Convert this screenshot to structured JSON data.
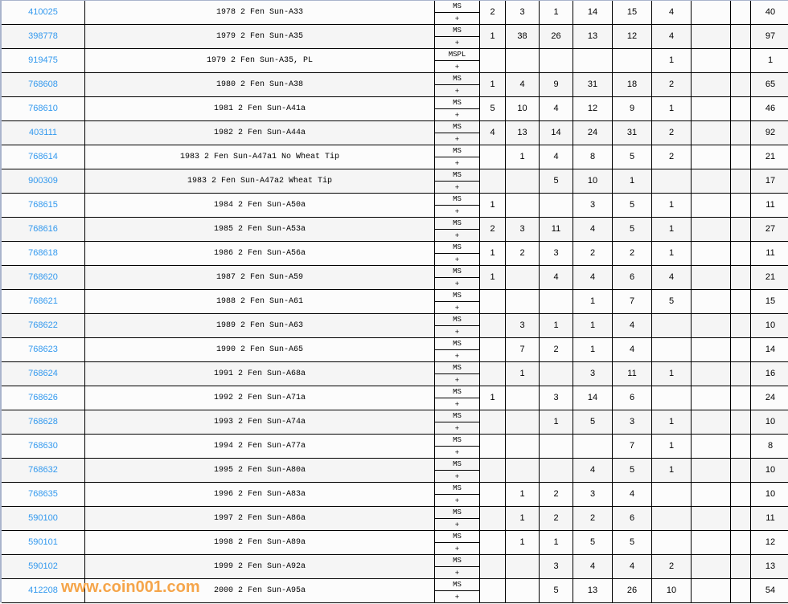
{
  "colors": {
    "link": "#3399ee",
    "frame": "#aab4cc",
    "row_alt": "#f5f5f5",
    "watermark": "#f5a54a"
  },
  "watermark": "www.coin001.com",
  "rows": [
    {
      "id": "410025",
      "desc": "1978 2 Fen Sun-A33",
      "grade": "MS",
      "plus": "+",
      "counts": [
        "2",
        "3",
        "1",
        "14",
        "15",
        "4",
        "",
        ""
      ],
      "total": "40"
    },
    {
      "id": "398778",
      "desc": "1979 2 Fen Sun-A35",
      "grade": "MS",
      "plus": "+",
      "counts": [
        "1",
        "38",
        "26",
        "13",
        "12",
        "4",
        "",
        ""
      ],
      "total": "97"
    },
    {
      "id": "919475",
      "desc": "1979 2 Fen Sun-A35, PL",
      "grade": "MSPL",
      "plus": "+",
      "counts": [
        "",
        "",
        "",
        "",
        "",
        "1",
        "",
        ""
      ],
      "total": "1"
    },
    {
      "id": "768608",
      "desc": "1980 2 Fen Sun-A38",
      "grade": "MS",
      "plus": "+",
      "counts": [
        "1",
        "4",
        "9",
        "31",
        "18",
        "2",
        "",
        ""
      ],
      "total": "65"
    },
    {
      "id": "768610",
      "desc": "1981 2 Fen Sun-A41a",
      "grade": "MS",
      "plus": "+",
      "counts": [
        "5",
        "10",
        "4",
        "12",
        "9",
        "1",
        "",
        ""
      ],
      "total": "46"
    },
    {
      "id": "403111",
      "desc": "1982 2 Fen Sun-A44a",
      "grade": "MS",
      "plus": "+",
      "counts": [
        "4",
        "13",
        "14",
        "24",
        "31",
        "2",
        "",
        ""
      ],
      "total": "92"
    },
    {
      "id": "768614",
      "desc": "1983 2 Fen Sun-A47a1 No Wheat Tip",
      "grade": "MS",
      "plus": "+",
      "counts": [
        "",
        "1",
        "4",
        "8",
        "5",
        "2",
        "",
        ""
      ],
      "total": "21"
    },
    {
      "id": "900309",
      "desc": "1983 2 Fen Sun-A47a2 Wheat Tip",
      "grade": "MS",
      "plus": "+",
      "counts": [
        "",
        "",
        "5",
        "10",
        "1",
        "",
        "",
        ""
      ],
      "total": "17"
    },
    {
      "id": "768615",
      "desc": "1984 2 Fen Sun-A50a",
      "grade": "MS",
      "plus": "+",
      "counts": [
        "1",
        "",
        "",
        "3",
        "5",
        "1",
        "",
        ""
      ],
      "total": "11"
    },
    {
      "id": "768616",
      "desc": "1985 2 Fen Sun-A53a",
      "grade": "MS",
      "plus": "+",
      "counts": [
        "2",
        "3",
        "11",
        "4",
        "5",
        "1",
        "",
        ""
      ],
      "total": "27"
    },
    {
      "id": "768618",
      "desc": "1986 2 Fen Sun-A56a",
      "grade": "MS",
      "plus": "+",
      "counts": [
        "1",
        "2",
        "3",
        "2",
        "2",
        "1",
        "",
        ""
      ],
      "total": "11"
    },
    {
      "id": "768620",
      "desc": "1987 2 Fen Sun-A59",
      "grade": "MS",
      "plus": "+",
      "counts": [
        "1",
        "",
        "4",
        "4",
        "6",
        "4",
        "",
        ""
      ],
      "total": "21"
    },
    {
      "id": "768621",
      "desc": "1988 2 Fen Sun-A61",
      "grade": "MS",
      "plus": "+",
      "counts": [
        "",
        "",
        "",
        "1",
        "7",
        "5",
        "",
        ""
      ],
      "total": "15"
    },
    {
      "id": "768622",
      "desc": "1989 2 Fen Sun-A63",
      "grade": "MS",
      "plus": "+",
      "counts": [
        "",
        "3",
        "1",
        "1",
        "4",
        "",
        "",
        ""
      ],
      "total": "10"
    },
    {
      "id": "768623",
      "desc": "1990 2 Fen Sun-A65",
      "grade": "MS",
      "plus": "+",
      "counts": [
        "",
        "7",
        "2",
        "1",
        "4",
        "",
        "",
        ""
      ],
      "total": "14"
    },
    {
      "id": "768624",
      "desc": "1991 2 Fen Sun-A68a",
      "grade": "MS",
      "plus": "+",
      "counts": [
        "",
        "1",
        "",
        "3",
        "11",
        "1",
        "",
        ""
      ],
      "total": "16"
    },
    {
      "id": "768626",
      "desc": "1992 2 Fen Sun-A71a",
      "grade": "MS",
      "plus": "+",
      "counts": [
        "1",
        "",
        "3",
        "14",
        "6",
        "",
        "",
        ""
      ],
      "total": "24"
    },
    {
      "id": "768628",
      "desc": "1993 2 Fen Sun-A74a",
      "grade": "MS",
      "plus": "+",
      "counts": [
        "",
        "",
        "1",
        "5",
        "3",
        "1",
        "",
        ""
      ],
      "total": "10"
    },
    {
      "id": "768630",
      "desc": "1994 2 Fen Sun-A77a",
      "grade": "MS",
      "plus": "+",
      "counts": [
        "",
        "",
        "",
        "",
        "7",
        "1",
        "",
        ""
      ],
      "total": "8"
    },
    {
      "id": "768632",
      "desc": "1995 2 Fen Sun-A80a",
      "grade": "MS",
      "plus": "+",
      "counts": [
        "",
        "",
        "",
        "4",
        "5",
        "1",
        "",
        ""
      ],
      "total": "10"
    },
    {
      "id": "768635",
      "desc": "1996 2 Fen Sun-A83a",
      "grade": "MS",
      "plus": "+",
      "counts": [
        "",
        "1",
        "2",
        "3",
        "4",
        "",
        "",
        ""
      ],
      "total": "10"
    },
    {
      "id": "590100",
      "desc": "1997 2 Fen Sun-A86a",
      "grade": "MS",
      "plus": "+",
      "counts": [
        "",
        "1",
        "2",
        "2",
        "6",
        "",
        "",
        ""
      ],
      "total": "11"
    },
    {
      "id": "590101",
      "desc": "1998 2 Fen Sun-A89a",
      "grade": "MS",
      "plus": "+",
      "counts": [
        "",
        "1",
        "1",
        "5",
        "5",
        "",
        "",
        ""
      ],
      "total": "12"
    },
    {
      "id": "590102",
      "desc": "1999 2 Fen Sun-A92a",
      "grade": "MS",
      "plus": "+",
      "counts": [
        "",
        "",
        "3",
        "4",
        "4",
        "2",
        "",
        ""
      ],
      "total": "13"
    },
    {
      "id": "412208",
      "desc": "2000 2 Fen Sun-A95a",
      "grade": "MS",
      "plus": "+",
      "counts": [
        "",
        "",
        "5",
        "13",
        "26",
        "10",
        "",
        ""
      ],
      "total": "54"
    }
  ]
}
